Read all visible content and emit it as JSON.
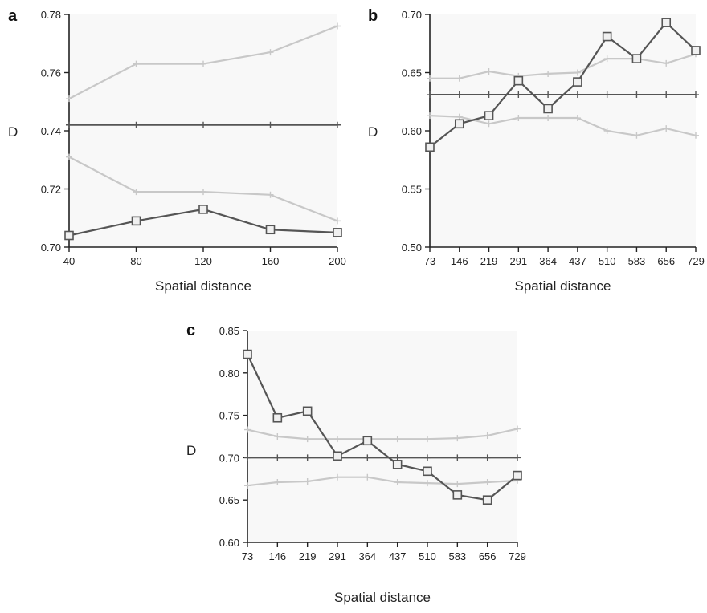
{
  "chart_data": [
    {
      "panel": "a",
      "type": "line",
      "xlabel": "Spatial distance",
      "ylabel": "D",
      "x": [
        40,
        80,
        120,
        160,
        200
      ],
      "x_tick_labels": [
        "40",
        "80",
        "120",
        "160",
        "200"
      ],
      "ylim": [
        0.7,
        0.78
      ],
      "y_ticks": [
        0.7,
        0.72,
        0.74,
        0.76,
        0.78
      ],
      "y_tick_labels": [
        "0.70",
        "0.72",
        "0.74",
        "0.76",
        "0.78"
      ],
      "series": [
        {
          "role": "observed",
          "marker": "square",
          "color": "#555555",
          "values": [
            0.704,
            0.709,
            0.713,
            0.706,
            0.705
          ]
        },
        {
          "role": "upper",
          "marker": "plus",
          "color": "#c8c8c8",
          "values": [
            0.751,
            0.763,
            0.763,
            0.767,
            0.776
          ]
        },
        {
          "role": "lower",
          "marker": "plus",
          "color": "#c8c8c8",
          "values": [
            0.731,
            0.719,
            0.719,
            0.718,
            0.709
          ]
        },
        {
          "role": "reference",
          "marker": "plus",
          "color": "#555555",
          "values": [
            0.742,
            0.742,
            0.742,
            0.742,
            0.742
          ]
        }
      ]
    },
    {
      "panel": "b",
      "type": "line",
      "xlabel": "Spatial distance",
      "ylabel": "D",
      "x": [
        73,
        146,
        219,
        291,
        364,
        437,
        510,
        583,
        656,
        729
      ],
      "x_tick_labels": [
        "73",
        "146",
        "219",
        "291",
        "364",
        "437",
        "510",
        "583",
        "656",
        "729"
      ],
      "ylim": [
        0.5,
        0.7
      ],
      "y_ticks": [
        0.5,
        0.55,
        0.6,
        0.65,
        0.7
      ],
      "y_tick_labels": [
        "0.50",
        "0.55",
        "0.60",
        "0.65",
        "0.70"
      ],
      "series": [
        {
          "role": "observed",
          "marker": "square",
          "color": "#555555",
          "values": [
            0.586,
            0.606,
            0.613,
            0.643,
            0.619,
            0.642,
            0.681,
            0.662,
            0.693,
            0.669
          ]
        },
        {
          "role": "upper",
          "marker": "plus",
          "color": "#c8c8c8",
          "values": [
            0.645,
            0.645,
            0.651,
            0.647,
            0.649,
            0.65,
            0.662,
            0.662,
            0.658,
            0.666
          ]
        },
        {
          "role": "lower",
          "marker": "plus",
          "color": "#c8c8c8",
          "values": [
            0.613,
            0.612,
            0.606,
            0.611,
            0.611,
            0.611,
            0.6,
            0.596,
            0.602,
            0.596
          ]
        },
        {
          "role": "reference",
          "marker": "plus",
          "color": "#555555",
          "values": [
            0.631,
            0.631,
            0.631,
            0.631,
            0.631,
            0.631,
            0.631,
            0.631,
            0.631,
            0.631
          ]
        }
      ]
    },
    {
      "panel": "c",
      "type": "line",
      "xlabel": "Spatial distance",
      "ylabel": "D",
      "x": [
        73,
        146,
        219,
        291,
        364,
        437,
        510,
        583,
        656,
        729
      ],
      "x_tick_labels": [
        "73",
        "146",
        "219",
        "291",
        "364",
        "437",
        "510",
        "583",
        "656",
        "729"
      ],
      "ylim": [
        0.6,
        0.85
      ],
      "y_ticks": [
        0.6,
        0.65,
        0.7,
        0.75,
        0.8,
        0.85
      ],
      "y_tick_labels": [
        "0.60",
        "0.65",
        "0.70",
        "0.75",
        "0.80",
        "0.85"
      ],
      "series": [
        {
          "role": "observed",
          "marker": "square",
          "color": "#555555",
          "values": [
            0.822,
            0.747,
            0.755,
            0.702,
            0.72,
            0.692,
            0.684,
            0.656,
            0.65,
            0.679
          ]
        },
        {
          "role": "upper",
          "marker": "plus",
          "color": "#c8c8c8",
          "values": [
            0.733,
            0.725,
            0.722,
            0.722,
            0.722,
            0.722,
            0.722,
            0.723,
            0.726,
            0.734
          ]
        },
        {
          "role": "lower",
          "marker": "plus",
          "color": "#c8c8c8",
          "values": [
            0.667,
            0.671,
            0.672,
            0.677,
            0.677,
            0.671,
            0.67,
            0.669,
            0.671,
            0.673
          ]
        },
        {
          "role": "reference",
          "marker": "plus",
          "color": "#555555",
          "values": [
            0.7,
            0.7,
            0.7,
            0.7,
            0.7,
            0.7,
            0.7,
            0.7,
            0.7,
            0.7
          ]
        }
      ]
    }
  ]
}
